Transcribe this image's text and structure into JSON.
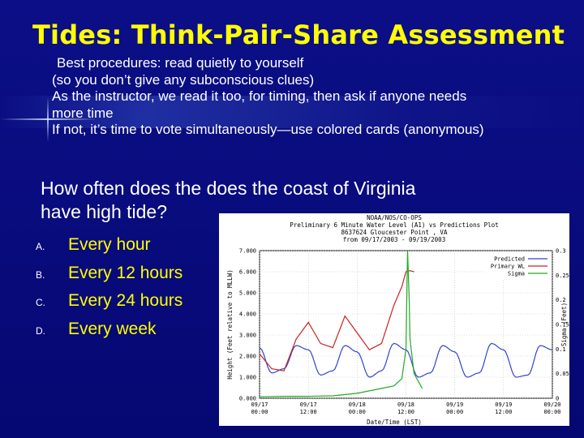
{
  "slide": {
    "title": "Tides: Think-Pair-Share Assessment",
    "notes": [
      " Best procedures: read quietly to yourself",
      "(so you don’t give any subconscious clues)",
      "As the instructor, we read it too, for timing, then ask if anyone needs",
      "more time",
      "If not, it’s time to vote simultaneously—use colored cards (anonymous)"
    ],
    "question_line1": "How often does the does the coast of Virginia",
    "question_line2": "have high tide?",
    "options": [
      {
        "letter": "A.",
        "text": "Every hour"
      },
      {
        "letter": "B.",
        "text": "Every 12 hours"
      },
      {
        "letter": "C.",
        "text": "Every 24 hours"
      },
      {
        "letter": "D.",
        "text": "Every week"
      }
    ],
    "colors": {
      "title": "#ffff00",
      "option_text": "#ffff00",
      "body_text": "#ffffff",
      "background": "#0b0e86"
    }
  },
  "chart_data": {
    "type": "line",
    "title_lines": [
      "NOAA/NOS/CO-OPS",
      "Preliminary 6 Minute Water Level (A1) vs Predictions Plot",
      "8637624 Gloucester Point , VA",
      "from 09/17/2003 - 09/19/2003"
    ],
    "xlabel": "Date/Time (LST)",
    "ylabel": "Height (Feet relative to MLLW)",
    "y2label": "Sigma (Feet)",
    "x_tick_labels": [
      [
        "09/17",
        "00:00"
      ],
      [
        "09/17",
        "12:00"
      ],
      [
        "09/18",
        "00:00"
      ],
      [
        "09/18",
        "12:00"
      ],
      [
        "09/19",
        "00:00"
      ],
      [
        "09/19",
        "12:00"
      ],
      [
        "09/20",
        "00:00"
      ]
    ],
    "xlim_hours": [
      0,
      72
    ],
    "ylim": [
      0,
      7
    ],
    "y_ticks": [
      "0.000",
      "1.000",
      "2.000",
      "3.000",
      "4.000",
      "5.000",
      "6.000",
      "7.000"
    ],
    "y2lim": [
      0,
      0.3
    ],
    "y2_ticks": [
      "0",
      "0.05",
      "0.1",
      "0.15",
      "0.2",
      "0.25",
      "0.3"
    ],
    "legend_position": "top-right",
    "series": [
      {
        "name": "Predicted",
        "color": "#3344cc",
        "x_hours": [
          0,
          3,
          6,
          9,
          12,
          15,
          18,
          21,
          24,
          27,
          30,
          33,
          36,
          39,
          42,
          45,
          48,
          51,
          54,
          57,
          60,
          63,
          66,
          69,
          72
        ],
        "y": [
          2.4,
          1.2,
          1.4,
          2.5,
          2.3,
          1.1,
          1.3,
          2.5,
          2.2,
          1.0,
          1.3,
          2.6,
          2.3,
          1.0,
          1.2,
          2.5,
          2.2,
          1.0,
          1.2,
          2.6,
          2.3,
          1.0,
          1.1,
          2.5,
          2.3
        ]
      },
      {
        "name": "Primary WL",
        "color": "#cc2222",
        "x_hours": [
          0,
          3,
          6,
          9,
          12,
          15,
          18,
          21,
          24,
          27,
          30,
          33,
          35,
          36,
          37,
          38
        ],
        "y": [
          2.1,
          1.4,
          1.3,
          2.8,
          3.6,
          2.6,
          2.4,
          3.9,
          3.1,
          2.3,
          2.6,
          4.4,
          5.3,
          6.0,
          6.05,
          6.0
        ]
      },
      {
        "name": "Sigma",
        "color": "#22aa22",
        "x_hours": [
          0,
          6,
          12,
          18,
          24,
          30,
          33,
          35,
          36,
          36.4,
          36.8,
          37,
          38,
          40
        ],
        "y": [
          0.003,
          0.004,
          0.004,
          0.005,
          0.01,
          0.02,
          0.025,
          0.04,
          0.1,
          0.3,
          0.2,
          0.12,
          0.05,
          0.02
        ]
      }
    ]
  }
}
